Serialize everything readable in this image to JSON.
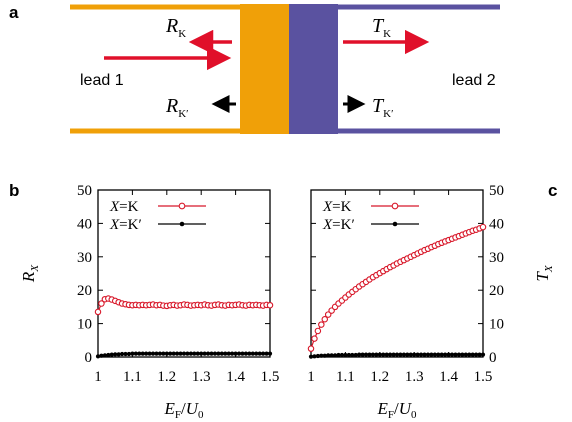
{
  "panel_labels": {
    "a": "a",
    "b": "b",
    "c": "c"
  },
  "schematic": {
    "lead_left": "lead 1",
    "lead_right": "lead 2",
    "labels": {
      "R_K": {
        "main": "R",
        "sub": "K"
      },
      "R_Kp": {
        "main": "R",
        "sub": "K′"
      },
      "T_K": {
        "main": "T",
        "sub": "K"
      },
      "T_Kp": {
        "main": "T",
        "sub": "K′"
      }
    },
    "colors": {
      "lead1": "#f0a008",
      "lead2": "#5a52a0",
      "arrow_red": "#e0102a",
      "arrow_black": "#000000"
    }
  },
  "chart_data": [
    {
      "type": "line",
      "panel": "b",
      "xlabel": {
        "main": "E",
        "sub": "F",
        "sep": "/",
        "main2": "U",
        "sub2": "0"
      },
      "ylabel": {
        "main": "R",
        "sub": "X"
      },
      "xlim": [
        1.0,
        1.5
      ],
      "ylim": [
        0,
        50
      ],
      "xticks": [
        "1",
        "1.1",
        "1.2",
        "1.3",
        "1.4",
        "1.5"
      ],
      "yticks": [
        "0",
        "10",
        "20",
        "30",
        "40",
        "50"
      ],
      "legend_position": "top-left",
      "grid": false,
      "x": [
        1.0,
        1.01,
        1.02,
        1.03,
        1.04,
        1.05,
        1.06,
        1.07,
        1.08,
        1.09,
        1.1,
        1.11,
        1.12,
        1.13,
        1.14,
        1.15,
        1.16,
        1.17,
        1.18,
        1.19,
        1.2,
        1.21,
        1.22,
        1.23,
        1.24,
        1.25,
        1.26,
        1.27,
        1.28,
        1.29,
        1.3,
        1.31,
        1.32,
        1.33,
        1.34,
        1.35,
        1.36,
        1.37,
        1.38,
        1.39,
        1.4,
        1.41,
        1.42,
        1.43,
        1.44,
        1.45,
        1.46,
        1.47,
        1.48,
        1.49,
        1.5
      ],
      "series": [
        {
          "name": "X=K",
          "legend": {
            "var": "X",
            "eq": "=",
            "val": "K"
          },
          "color": "#d8182a",
          "marker": "open-circle",
          "values": [
            13.5,
            16.0,
            17.3,
            17.5,
            17.2,
            16.8,
            16.4,
            16.0,
            15.8,
            15.6,
            15.5,
            15.6,
            15.5,
            15.6,
            15.5,
            15.6,
            15.7,
            15.5,
            15.6,
            15.4,
            15.3,
            15.5,
            15.6,
            15.4,
            15.5,
            15.7,
            15.6,
            15.4,
            15.5,
            15.6,
            15.5,
            15.7,
            15.5,
            15.4,
            15.6,
            15.7,
            15.5,
            15.4,
            15.6,
            15.5,
            15.6,
            15.7,
            15.5,
            15.4,
            15.6,
            15.5,
            15.6,
            15.5,
            15.4,
            15.6,
            15.5
          ]
        },
        {
          "name": "X=K′",
          "legend": {
            "var": "X",
            "eq": "=",
            "val": "K′"
          },
          "color": "#000000",
          "marker": "filled-circle",
          "values": [
            0.2,
            0.4,
            0.5,
            0.6,
            0.7,
            0.8,
            0.8,
            0.9,
            0.9,
            0.9,
            1.0,
            1.0,
            1.0,
            1.0,
            1.0,
            1.0,
            1.0,
            1.0,
            1.0,
            1.0,
            1.0,
            1.0,
            1.0,
            1.0,
            1.0,
            1.0,
            1.0,
            1.0,
            1.0,
            1.0,
            1.0,
            1.0,
            1.0,
            1.0,
            1.0,
            1.0,
            1.0,
            1.0,
            1.0,
            1.0,
            1.0,
            1.0,
            1.0,
            1.0,
            1.0,
            1.0,
            1.0,
            1.0,
            1.0,
            1.0,
            1.0
          ]
        }
      ]
    },
    {
      "type": "line",
      "panel": "c",
      "xlabel": {
        "main": "E",
        "sub": "F",
        "sep": "/",
        "main2": "U",
        "sub2": "0"
      },
      "ylabel": {
        "main": "T",
        "sub": "X"
      },
      "xlim": [
        1.0,
        1.5
      ],
      "ylim": [
        0,
        50
      ],
      "xticks": [
        "1",
        "1.1",
        "1.2",
        "1.3",
        "1.4",
        "1.5"
      ],
      "yticks": [
        "0",
        "10",
        "20",
        "30",
        "40",
        "50"
      ],
      "legend_position": "top-left",
      "grid": false,
      "x": [
        1.0,
        1.01,
        1.02,
        1.03,
        1.04,
        1.05,
        1.06,
        1.07,
        1.08,
        1.09,
        1.1,
        1.11,
        1.12,
        1.13,
        1.14,
        1.15,
        1.16,
        1.17,
        1.18,
        1.19,
        1.2,
        1.21,
        1.22,
        1.23,
        1.24,
        1.25,
        1.26,
        1.27,
        1.28,
        1.29,
        1.3,
        1.31,
        1.32,
        1.33,
        1.34,
        1.35,
        1.36,
        1.37,
        1.38,
        1.39,
        1.4,
        1.41,
        1.42,
        1.43,
        1.44,
        1.45,
        1.46,
        1.47,
        1.48,
        1.49,
        1.5
      ],
      "series": [
        {
          "name": "X=K",
          "legend": {
            "var": "X",
            "eq": "=",
            "val": "K"
          },
          "color": "#d8182a",
          "marker": "open-circle",
          "values": [
            2.5,
            5.5,
            7.8,
            9.7,
            11.3,
            12.7,
            13.9,
            15.0,
            16.0,
            16.9,
            17.8,
            18.7,
            19.5,
            20.3,
            21.1,
            21.8,
            22.5,
            23.2,
            23.9,
            24.5,
            25.1,
            25.7,
            26.3,
            26.9,
            27.4,
            28.0,
            28.5,
            29.0,
            29.5,
            30.0,
            30.5,
            31.0,
            31.5,
            32.0,
            32.4,
            32.9,
            33.3,
            33.8,
            34.2,
            34.6,
            35.0,
            35.4,
            35.8,
            36.2,
            36.6,
            37.0,
            37.4,
            37.8,
            38.1,
            38.5,
            38.9
          ]
        },
        {
          "name": "X=K′",
          "legend": {
            "var": "X",
            "eq": "=",
            "val": "K′"
          },
          "color": "#000000",
          "marker": "filled-circle",
          "values": [
            0.1,
            0.2,
            0.3,
            0.4,
            0.4,
            0.5,
            0.5,
            0.5,
            0.6,
            0.6,
            0.6,
            0.6,
            0.6,
            0.6,
            0.7,
            0.7,
            0.7,
            0.7,
            0.7,
            0.7,
            0.7,
            0.7,
            0.7,
            0.7,
            0.7,
            0.7,
            0.7,
            0.7,
            0.7,
            0.7,
            0.7,
            0.7,
            0.7,
            0.7,
            0.7,
            0.7,
            0.7,
            0.7,
            0.7,
            0.7,
            0.7,
            0.7,
            0.7,
            0.7,
            0.7,
            0.7,
            0.7,
            0.7,
            0.7,
            0.7,
            0.7
          ]
        }
      ]
    }
  ]
}
